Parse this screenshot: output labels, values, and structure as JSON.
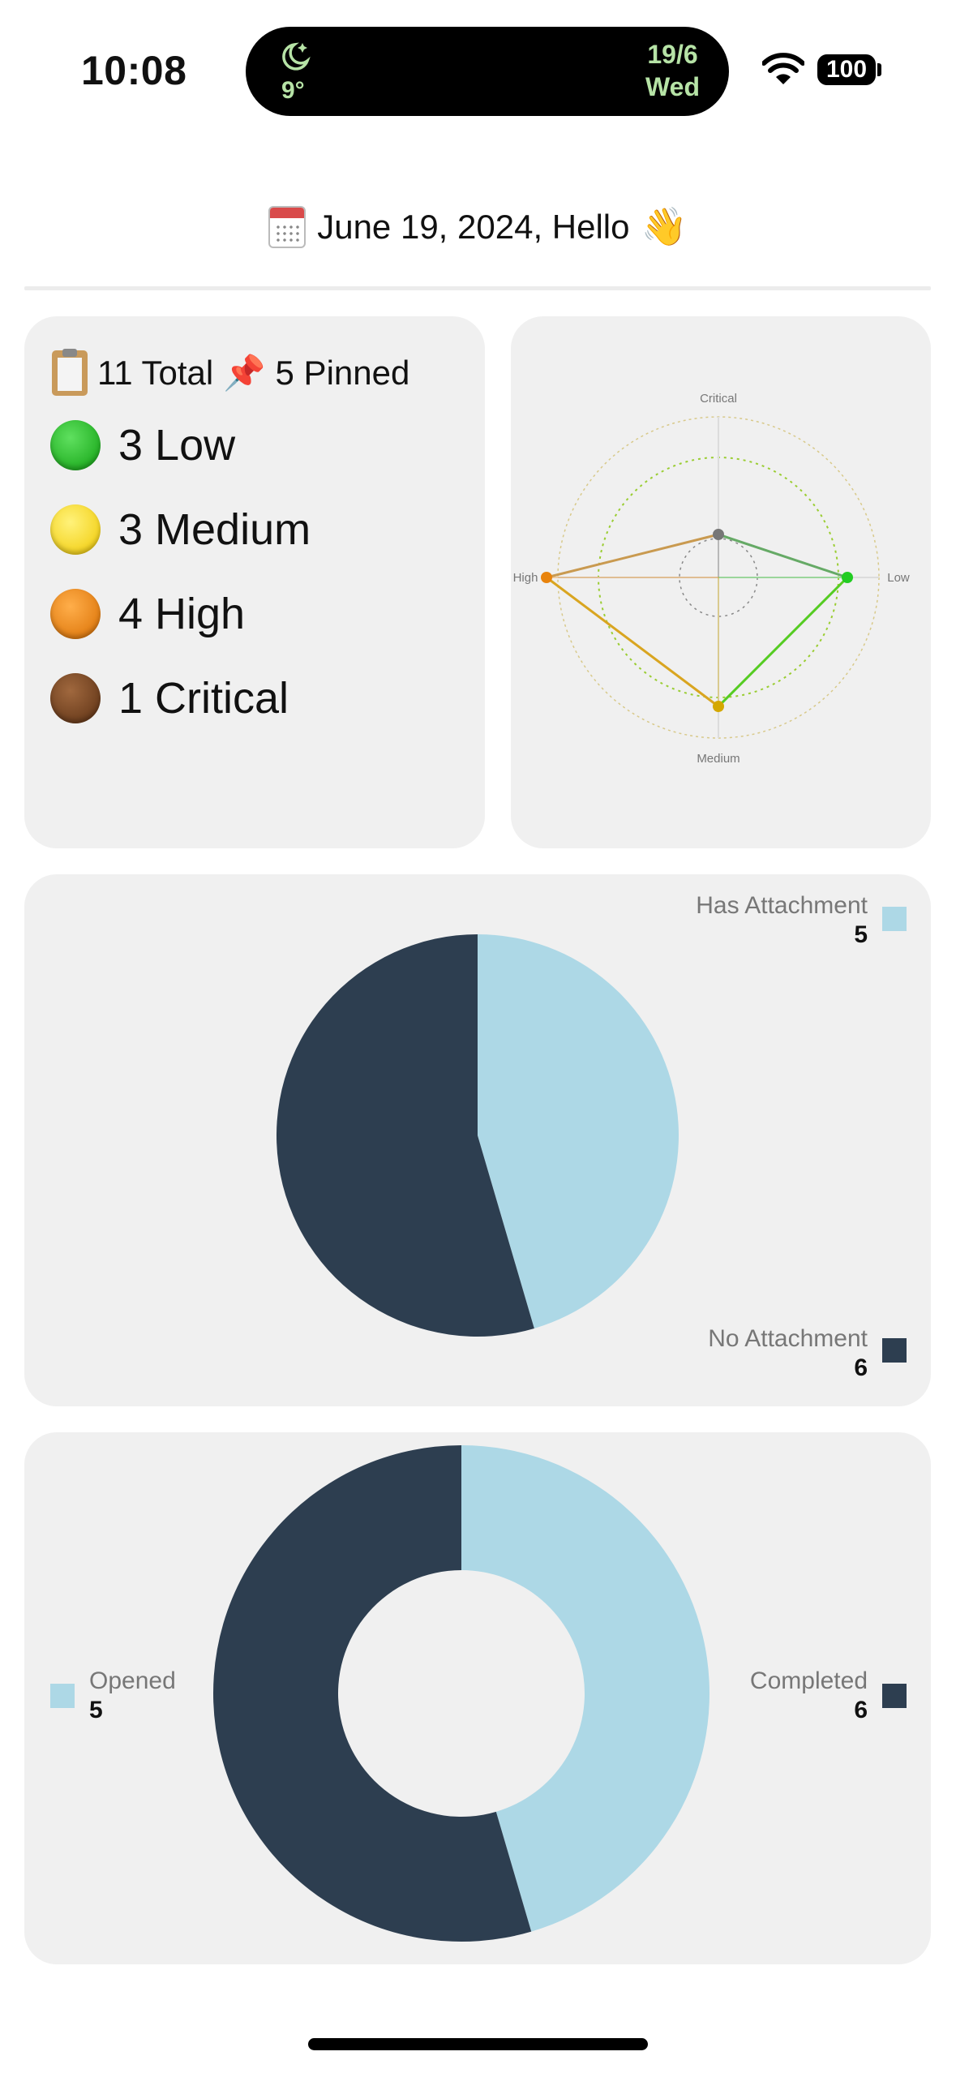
{
  "status": {
    "time": "10:08",
    "temp": "9°",
    "date_day": "19/6",
    "date_weekday": "Wed",
    "battery": "100"
  },
  "header": {
    "greeting": "June 19, 2024, Hello",
    "calendar_icon": "calendar-icon",
    "wave_icon": "waving-hand-icon"
  },
  "stats": {
    "total": "11 Total",
    "pinned": "5 Pinned",
    "priorities": [
      {
        "label": "3 Low",
        "color": "#22b422"
      },
      {
        "label": "3 Medium",
        "color": "#f5d400"
      },
      {
        "label": "4 High",
        "color": "#e8830c"
      },
      {
        "label": "1 Critical",
        "color": "#6b3b1a"
      }
    ]
  },
  "radar": {
    "axes": [
      "Critical",
      "Low",
      "Medium",
      "High"
    ],
    "values": [
      1,
      3,
      3,
      4
    ],
    "max": 4
  },
  "attachments": {
    "slices": [
      {
        "label": "Has Attachment",
        "count": "5",
        "value": 5,
        "color": "#add8e6"
      },
      {
        "label": "No Attachment",
        "count": "6",
        "value": 6,
        "color": "#2d3e50"
      }
    ]
  },
  "completion": {
    "slices": [
      {
        "label": "Opened",
        "count": "5",
        "value": 5,
        "color": "#add8e6"
      },
      {
        "label": "Completed",
        "count": "6",
        "value": 6,
        "color": "#2d3e50"
      }
    ]
  },
  "chart_data": [
    {
      "type": "radar",
      "categories": [
        "Critical",
        "Low",
        "Medium",
        "High"
      ],
      "values": [
        1,
        3,
        3,
        4
      ]
    },
    {
      "type": "pie",
      "categories": [
        "Has Attachment",
        "No Attachment"
      ],
      "values": [
        5,
        6
      ]
    },
    {
      "type": "pie",
      "categories": [
        "Opened",
        "Completed"
      ],
      "values": [
        5,
        6
      ]
    }
  ]
}
